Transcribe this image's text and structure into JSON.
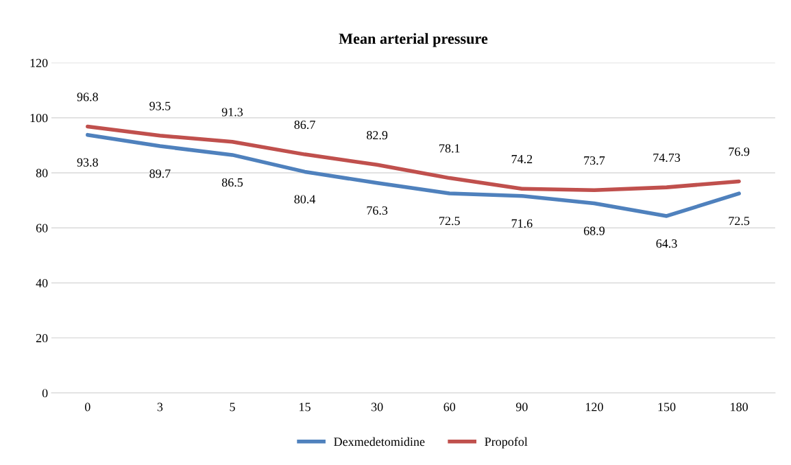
{
  "chart_data": {
    "type": "line",
    "title": "Mean arterial pressure",
    "categories": [
      "0",
      "3",
      "5",
      "15",
      "30",
      "60",
      "90",
      "120",
      "150",
      "180"
    ],
    "series": [
      {
        "name": "Dexmedetomidine",
        "color": "#4f81bd",
        "values": [
          93.8,
          89.7,
          86.5,
          80.4,
          76.3,
          72.5,
          71.6,
          68.9,
          64.3,
          72.5
        ]
      },
      {
        "name": "Propofol",
        "color": "#c0504d",
        "values": [
          96.8,
          93.5,
          91.3,
          86.7,
          82.9,
          78.1,
          74.2,
          73.7,
          74.73,
          76.9
        ]
      }
    ],
    "ylim": [
      0,
      120
    ],
    "yticks": [
      0,
      20,
      40,
      60,
      80,
      100,
      120
    ],
    "grid": "y",
    "legend": "bottom",
    "data_labels": true,
    "marker": "none",
    "line_style": "solid"
  }
}
